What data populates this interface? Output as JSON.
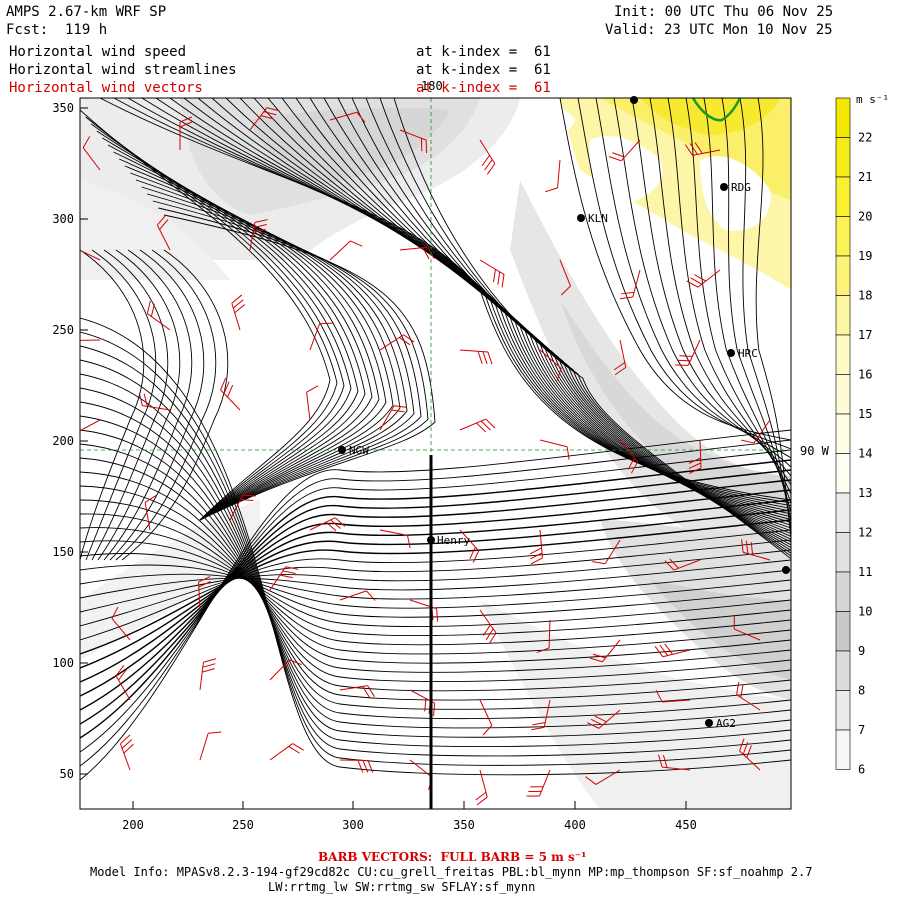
{
  "header": {
    "title": "AMPS 2.67-km WRF SP",
    "forecast": "Fcst:  119 h",
    "init": "Init: 00 UTC Thu 06 Nov 25",
    "valid": "Valid: 23 UTC Mon 10 Nov 25",
    "layers": [
      {
        "name": "Horizontal wind speed",
        "level": "at k-index =  61",
        "color": "#000000"
      },
      {
        "name": "Horizontal wind streamlines",
        "level": "at k-index =  61",
        "color": "#000000"
      },
      {
        "name": "Horizontal wind vectors",
        "level": "at k-index =  61",
        "color": "#d40000"
      }
    ]
  },
  "map": {
    "x_ticks": [
      "200",
      "250",
      "300",
      "350",
      "400",
      "450"
    ],
    "y_ticks": [
      "350",
      "300",
      "250",
      "200",
      "150",
      "100",
      "50"
    ],
    "meridian_label": "180",
    "parallel_label": "90 W",
    "stations": [
      {
        "name": "RDG"
      },
      {
        "name": "KLN"
      },
      {
        "name": "HRC"
      },
      {
        "name": "NGW"
      },
      {
        "name": "Henry"
      },
      {
        "name": "AG2"
      },
      {
        "name": ""
      },
      {
        "name": ""
      }
    ]
  },
  "colorbar": {
    "unit": "m s⁻¹",
    "levels": [
      "22",
      "21",
      "20",
      "19",
      "18",
      "17",
      "16",
      "15",
      "14",
      "13",
      "12",
      "11",
      "10",
      "9",
      "8",
      "7",
      "6"
    ],
    "colors": [
      "#f5e800",
      "#f7ec1a",
      "#faf032",
      "#fbf256",
      "#fcf478",
      "#fdf7a2",
      "#fefac4",
      "#fefbd6",
      "#fefde6",
      "#fefef2",
      "#ececec",
      "#e2e2e2",
      "#d6d6d6",
      "#c9c9c9",
      "#dcdcdc",
      "#ebebeb",
      "#f6f6f6"
    ]
  },
  "footer": {
    "barb_note": "BARB VECTORS:  FULL BARB = 5 m s⁻¹",
    "model_info": "Model Info: MPASv8.2.3-194-gf29cd82c CU:cu_grell_freitas PBL:bl_mynn MP:mp_thompson SF:sf_noahmp 2.7",
    "schemes": "LW:rrtmg_lw SW:rrtmg_sw SFLAY:sf_mynn"
  }
}
